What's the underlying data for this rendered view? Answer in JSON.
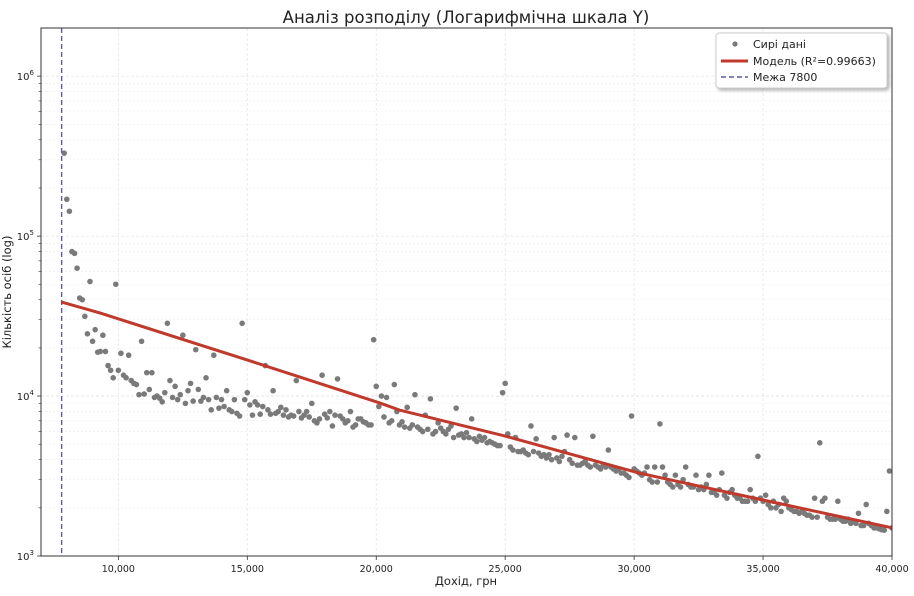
{
  "chart_data": {
    "type": "scatter",
    "title": "Аналіз розподілу (Логарифмічна шкала Y)",
    "xlabel": "Дохід, грн",
    "ylabel": "Кількість осіб (log)",
    "xlim": [
      7000,
      40000
    ],
    "ylim": [
      1000,
      2000000
    ],
    "y_scale": "log",
    "grid": true,
    "legend_position": "top-right",
    "x_ticks": [
      10000,
      15000,
      20000,
      25000,
      30000,
      35000,
      40000
    ],
    "x_tick_labels": [
      "10,000",
      "15,000",
      "20,000",
      "25,000",
      "30,000",
      "35,000",
      "40,000"
    ],
    "y_ticks": [
      1000,
      10000,
      100000,
      1000000
    ],
    "y_tick_labels": [
      {
        "base": "10",
        "exp": "3"
      },
      {
        "base": "10",
        "exp": "4"
      },
      {
        "base": "10",
        "exp": "5"
      },
      {
        "base": "10",
        "exp": "6"
      }
    ],
    "colors": {
      "scatter": "#7a7a7a",
      "model": "#c0392b",
      "threshold": "#5a5ca0"
    },
    "series": [
      {
        "name": "Сирі дані",
        "kind": "scatter",
        "x": [
          7900,
          8000,
          8100,
          8200,
          8300,
          8400,
          8500,
          8600,
          8700,
          8800,
          8900,
          9000,
          9100,
          9200,
          9300,
          9400,
          9500,
          9600,
          9700,
          9800,
          9900,
          10000,
          10100,
          10200,
          10300,
          10400,
          10500,
          10600,
          10700,
          10800,
          10900,
          11000,
          11100,
          11200,
          11300,
          11400,
          11500,
          11600,
          11700,
          11800,
          11900,
          12000,
          12100,
          12200,
          12300,
          12400,
          12500,
          12600,
          12700,
          12800,
          12900,
          13000,
          13100,
          13200,
          13300,
          13400,
          13500,
          13600,
          13700,
          13800,
          13900,
          14000,
          14100,
          14200,
          14300,
          14400,
          14500,
          14600,
          14700,
          14800,
          14900,
          15000,
          15100,
          15200,
          15300,
          15400,
          15500,
          15600,
          15700,
          15800,
          15900,
          16000,
          16100,
          16200,
          16300,
          16400,
          16500,
          16600,
          16700,
          16800,
          16900,
          17000,
          17100,
          17200,
          17300,
          17400,
          17500,
          17600,
          17700,
          17800,
          17900,
          18000,
          18100,
          18200,
          18300,
          18400,
          18500,
          18600,
          18700,
          18800,
          18900,
          19000,
          19100,
          19200,
          19300,
          19400,
          19500,
          19600,
          19700,
          19800,
          19900,
          20000,
          20100,
          20200,
          20300,
          20400,
          20500,
          20600,
          20700,
          20800,
          20900,
          21000,
          21100,
          21200,
          21300,
          21400,
          21500,
          21600,
          21700,
          21800,
          21900,
          22000,
          22100,
          22200,
          22300,
          22400,
          22500,
          22600,
          22700,
          22800,
          22900,
          23000,
          23100,
          23200,
          23300,
          23400,
          23500,
          23600,
          23700,
          23800,
          23900,
          24000,
          24100,
          24200,
          24300,
          24400,
          24500,
          24600,
          24700,
          24800,
          24900,
          25000,
          25100,
          25200,
          25300,
          25400,
          25500,
          25600,
          25700,
          25800,
          25900,
          26000,
          26100,
          26200,
          26300,
          26400,
          26500,
          26600,
          26700,
          26800,
          26900,
          27000,
          27100,
          27200,
          27300,
          27400,
          27500,
          27600,
          27700,
          27800,
          27900,
          28000,
          28100,
          28200,
          28300,
          28400,
          28500,
          28600,
          28700,
          28800,
          28900,
          29000,
          29100,
          29200,
          29300,
          29400,
          29500,
          29600,
          29700,
          29800,
          29900,
          30000,
          30100,
          30200,
          30300,
          30400,
          30500,
          30600,
          30700,
          30800,
          30900,
          31000,
          31100,
          31200,
          31300,
          31400,
          31500,
          31600,
          31700,
          31800,
          31900,
          32000,
          32100,
          32200,
          32300,
          32400,
          32500,
          32600,
          32700,
          32800,
          32900,
          33000,
          33100,
          33200,
          33300,
          33400,
          33500,
          33600,
          33700,
          33800,
          33900,
          34000,
          34100,
          34200,
          34300,
          34400,
          34500,
          34600,
          34700,
          34800,
          34900,
          35000,
          35100,
          35200,
          35300,
          35400,
          35500,
          35600,
          35700,
          35800,
          35900,
          36000,
          36100,
          36200,
          36300,
          36400,
          36500,
          36600,
          36700,
          36800,
          36900,
          37000,
          37100,
          37200,
          37300,
          37400,
          37500,
          37600,
          37700,
          37800,
          37900,
          38000,
          38100,
          38200,
          38300,
          38400,
          38500,
          38600,
          38700,
          38800,
          38900,
          39000,
          39100,
          39200,
          39300,
          39400,
          39500,
          39600,
          39700,
          39800,
          39900,
          40000
        ],
        "y": [
          330000,
          170000,
          143000,
          80000,
          78000,
          63000,
          41000,
          40000,
          31500,
          24500,
          52000,
          22000,
          26000,
          18800,
          19000,
          24000,
          19000,
          15500,
          14500,
          13000,
          50000,
          14500,
          18500,
          13500,
          13000,
          18000,
          12500,
          12000,
          11800,
          10200,
          22000,
          10300,
          14000,
          11000,
          14000,
          9800,
          10000,
          9700,
          9200,
          10500,
          28500,
          12500,
          9800,
          11500,
          9500,
          10200,
          24000,
          9000,
          10800,
          12000,
          9300,
          19500,
          11000,
          9300,
          9800,
          13000,
          9500,
          8200,
          18000,
          9800,
          8400,
          9500,
          8600,
          10800,
          8200,
          8000,
          9500,
          7800,
          7500,
          28500,
          9500,
          10500,
          8800,
          7600,
          9200,
          8800,
          7700,
          8600,
          15500,
          8200,
          7700,
          10800,
          7800,
          8000,
          8500,
          7600,
          8200,
          7400,
          7600,
          7500,
          12500,
          8000,
          7300,
          7600,
          8000,
          7400,
          9000,
          7000,
          6800,
          7200,
          13500,
          7700,
          7300,
          8000,
          6500,
          7600,
          12800,
          7500,
          7200,
          6800,
          7000,
          8000,
          6400,
          6600,
          7200,
          7200,
          6900,
          6800,
          6600,
          6600,
          22500,
          11500,
          8600,
          10000,
          7400,
          9800,
          6800,
          7000,
          11800,
          8000,
          6600,
          6900,
          6400,
          8500,
          6300,
          6600,
          10200,
          6400,
          6200,
          6000,
          7600,
          6200,
          9600,
          5800,
          6000,
          6800,
          6300,
          6000,
          5800,
          6200,
          6500,
          5500,
          8400,
          5700,
          5800,
          5500,
          5900,
          5500,
          7200,
          5400,
          5200,
          5600,
          5300,
          5500,
          5100,
          5200,
          5100,
          5000,
          4900,
          4900,
          10500,
          12000,
          5800,
          4800,
          4600,
          5500,
          4500,
          4500,
          4600,
          4400,
          4300,
          6500,
          4500,
          5400,
          4400,
          4200,
          4300,
          4100,
          4300,
          4000,
          5500,
          4100,
          3900,
          4200,
          4500,
          5700,
          4000,
          3800,
          5500,
          3700,
          3700,
          3800,
          3900,
          3700,
          3600,
          5600,
          3700,
          3600,
          3500,
          3700,
          3600,
          4600,
          3600,
          3500,
          3400,
          3500,
          3300,
          3300,
          3200,
          3100,
          7500,
          3500,
          3400,
          3300,
          3200,
          3300,
          3600,
          3000,
          2900,
          3600,
          2900,
          6700,
          3600,
          3200,
          2900,
          2800,
          2700,
          3200,
          2800,
          2700,
          3000,
          3600,
          2800,
          2700,
          2700,
          3200,
          2600,
          2700,
          2600,
          2800,
          3200,
          2500,
          2500,
          2400,
          2600,
          3300,
          2400,
          2300,
          2500,
          2600,
          2400,
          2300,
          2300,
          2200,
          2200,
          2200,
          2600,
          2300,
          2200,
          4200,
          2300,
          2200,
          2400,
          2100,
          2000,
          2200,
          2000,
          2100,
          1900,
          2300,
          2200,
          2000,
          1950,
          1900,
          1900,
          1850,
          1900,
          1850,
          1800,
          1800,
          1750,
          2300,
          1750,
          5100,
          2200,
          2300,
          1750,
          1700,
          1700,
          1700,
          2200,
          1700,
          1650,
          1650,
          1700,
          1600,
          1650,
          1600,
          1850,
          1550,
          1550,
          2100,
          1600,
          1550,
          1500,
          1500,
          1480,
          1460,
          1450,
          1900,
          3400,
          1500
        ]
      },
      {
        "name": "Модель (R²=0.99663)",
        "kind": "line",
        "x": [
          7800,
          9300,
          15100,
          20150,
          20900,
          25000,
          30200,
          31800,
          35000,
          40000
        ],
        "y": [
          38700,
          33000,
          16600,
          9040,
          8170,
          5620,
          3300,
          2900,
          2240,
          1500
        ]
      },
      {
        "name": "Межа 7800",
        "kind": "vline",
        "x": 7800
      }
    ]
  }
}
